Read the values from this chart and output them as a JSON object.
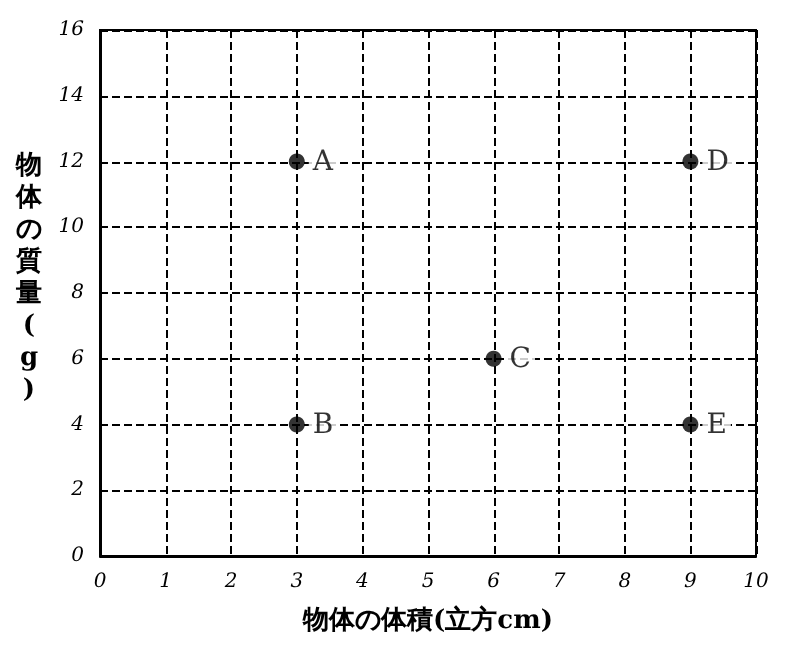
{
  "chart_data": {
    "type": "scatter",
    "x": [
      3,
      3,
      6,
      9,
      9
    ],
    "values": [
      12,
      4,
      6,
      12,
      4
    ],
    "color": "#000000",
    "marker": "circle",
    "xlabel": "物体の体積(立方cm)",
    "ylabel": "物体の質量(g)",
    "xlim": [
      0,
      10
    ],
    "xticks": [
      0,
      1,
      2,
      3,
      4,
      5,
      6,
      7,
      8,
      9,
      10
    ],
    "ylim": [
      0,
      16
    ],
    "yticks": [
      0,
      2,
      4,
      6,
      8,
      10,
      12,
      14,
      16
    ],
    "grid": true,
    "annotations": [
      {
        "text": "A",
        "x": 3,
        "y": 12
      },
      {
        "text": "B",
        "x": 3,
        "y": 4
      },
      {
        "text": "C",
        "x": 6,
        "y": 6
      },
      {
        "text": "D",
        "x": 9,
        "y": 12
      },
      {
        "text": "E",
        "x": 9,
        "y": 4
      }
    ]
  }
}
